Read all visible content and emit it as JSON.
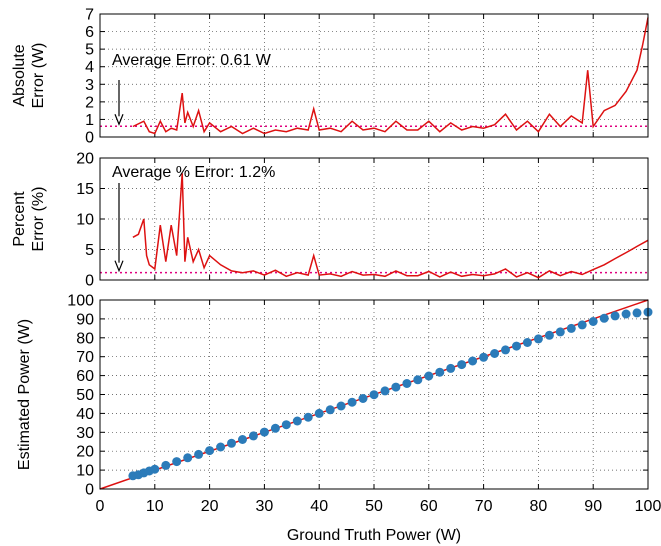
{
  "chart_data": [
    {
      "type": "line",
      "panel": "absolute-error",
      "ylabel_lines": [
        "Absolute",
        "Error (W)"
      ],
      "annotation": "Average Error: 0.61 W",
      "average_value": 0.61,
      "ylim": [
        0,
        7
      ],
      "yticks": [
        0,
        1,
        2,
        3,
        4,
        5,
        6,
        7
      ],
      "xlim": [
        0,
        100
      ],
      "grid": true,
      "series": [
        {
          "color": "#dd1111",
          "x": [
            6,
            8,
            9,
            10,
            11,
            12,
            13,
            14,
            15,
            15.5,
            16,
            17,
            18,
            19,
            20,
            22,
            24,
            26,
            28,
            30,
            32,
            34,
            36,
            38,
            39,
            40,
            42,
            44,
            46,
            48,
            50,
            52,
            54,
            56,
            58,
            60,
            62,
            64,
            66,
            68,
            70,
            72,
            74,
            76,
            78,
            80,
            82,
            84,
            86,
            88,
            89,
            90,
            92,
            94,
            96,
            98,
            99,
            100
          ],
          "y": [
            0.6,
            0.9,
            0.3,
            0.2,
            0.9,
            0.3,
            0.5,
            0.4,
            2.5,
            0.8,
            1.4,
            0.6,
            1.5,
            0.3,
            0.8,
            0.3,
            0.6,
            0.2,
            0.5,
            0.2,
            0.4,
            0.3,
            0.5,
            0.4,
            1.6,
            0.4,
            0.5,
            0.3,
            0.9,
            0.4,
            0.5,
            0.3,
            0.9,
            0.4,
            0.4,
            0.9,
            0.3,
            0.8,
            0.4,
            0.6,
            0.5,
            0.7,
            1.3,
            0.4,
            0.9,
            0.3,
            1.3,
            0.6,
            1.2,
            0.8,
            3.8,
            0.6,
            1.5,
            1.8,
            2.6,
            3.8,
            5.2,
            6.8
          ]
        }
      ]
    },
    {
      "type": "line",
      "panel": "percent-error",
      "ylabel_lines": [
        "Percent",
        "Error (%)"
      ],
      "annotation": "Average % Error: 1.2%",
      "average_value": 1.2,
      "ylim": [
        0,
        20
      ],
      "yticks": [
        0,
        5,
        10,
        15,
        20
      ],
      "xlim": [
        0,
        100
      ],
      "grid": true,
      "series": [
        {
          "color": "#dd1111",
          "x": [
            6,
            7,
            8,
            8.5,
            9,
            10,
            11,
            12,
            13,
            14,
            15,
            15.5,
            16,
            17,
            18,
            19,
            20,
            22,
            24,
            26,
            28,
            30,
            32,
            34,
            36,
            38,
            39,
            40,
            42,
            44,
            46,
            48,
            50,
            52,
            54,
            56,
            58,
            60,
            62,
            64,
            66,
            68,
            70,
            72,
            74,
            76,
            78,
            80,
            82,
            84,
            86,
            88,
            90,
            92,
            94,
            96,
            98,
            100
          ],
          "y": [
            7,
            7.5,
            10,
            4,
            2.5,
            1.8,
            9,
            3,
            9,
            4,
            17.5,
            3,
            7,
            3,
            5,
            2,
            4,
            2.5,
            1.5,
            1.2,
            1.5,
            0.8,
            1.6,
            0.6,
            1.2,
            0.8,
            4,
            0.8,
            1,
            0.6,
            1.4,
            0.8,
            0.9,
            0.6,
            1.5,
            0.7,
            0.7,
            1.4,
            0.5,
            1.3,
            0.6,
            0.9,
            0.7,
            1.0,
            1.8,
            0.5,
            1.2,
            0.4,
            1.5,
            0.7,
            1.4,
            0.9,
            1.7,
            2.5,
            3.5,
            4.5,
            5.5,
            6.5
          ]
        }
      ]
    },
    {
      "type": "scatter",
      "panel": "estimated-vs-truth",
      "xlabel": "Ground Truth Power (W)",
      "ylabel": "Estimated Power (W)",
      "xlim": [
        0,
        100
      ],
      "ylim": [
        0,
        100
      ],
      "xticks": [
        0,
        10,
        20,
        30,
        40,
        50,
        60,
        70,
        80,
        90,
        100
      ],
      "yticks": [
        0,
        10,
        20,
        30,
        40,
        50,
        60,
        70,
        80,
        90,
        100
      ],
      "grid": true,
      "reference_line": {
        "x": [
          0,
          100
        ],
        "y": [
          0,
          100
        ],
        "color": "#dd1111"
      },
      "series": [
        {
          "color": "#2b7bb9",
          "x": [
            6,
            7,
            8,
            9,
            10,
            12,
            14,
            16,
            18,
            20,
            22,
            24,
            26,
            28,
            30,
            32,
            34,
            36,
            38,
            40,
            42,
            44,
            46,
            48,
            50,
            52,
            54,
            56,
            58,
            60,
            62,
            64,
            66,
            68,
            70,
            72,
            74,
            76,
            78,
            80,
            82,
            84,
            86,
            88,
            90,
            92,
            94,
            96,
            98,
            100
          ],
          "y": [
            7,
            7.5,
            8.5,
            9.5,
            10.5,
            12.5,
            14.5,
            16.5,
            18.3,
            20.3,
            22.2,
            24.2,
            26.2,
            28.1,
            30.1,
            32.1,
            34,
            36,
            38,
            40,
            41.9,
            43.9,
            45.9,
            47.9,
            49.9,
            51.9,
            53.9,
            55.8,
            57.8,
            59.8,
            61.8,
            63.8,
            65.8,
            67.7,
            69.7,
            71.7,
            73.6,
            75.6,
            77.5,
            79.4,
            81.3,
            83.1,
            85,
            86.8,
            88.6,
            90.3,
            91.6,
            92.6,
            93.2,
            93.6
          ]
        }
      ]
    }
  ]
}
